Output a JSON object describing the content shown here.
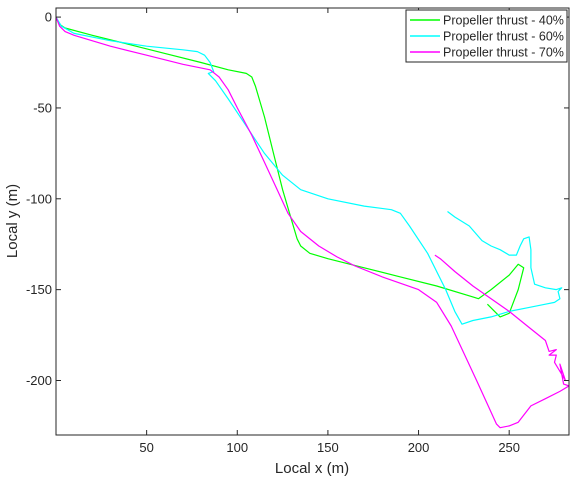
{
  "chart_data": {
    "type": "line",
    "title": "",
    "xlabel": "Local x (m)",
    "ylabel": "Local y (m)",
    "xlim": [
      0,
      283
    ],
    "ylim": [
      -230,
      5
    ],
    "xticks": [
      50,
      100,
      150,
      200,
      250
    ],
    "yticks": [
      0,
      -50,
      -100,
      -150,
      -200
    ],
    "grid": false,
    "legend_position": "top-right",
    "series": [
      {
        "name": "Propeller thrust - 40%",
        "color": "#00ff00",
        "points": [
          [
            0,
            0
          ],
          [
            2,
            -4
          ],
          [
            5,
            -6
          ],
          [
            20,
            -10
          ],
          [
            40,
            -15
          ],
          [
            60,
            -20
          ],
          [
            80,
            -25
          ],
          [
            95,
            -29
          ],
          [
            105,
            -31
          ],
          [
            108,
            -33
          ],
          [
            110,
            -38
          ],
          [
            115,
            -55
          ],
          [
            120,
            -75
          ],
          [
            125,
            -95
          ],
          [
            130,
            -112
          ],
          [
            133,
            -122
          ],
          [
            135,
            -126
          ],
          [
            140,
            -130
          ],
          [
            150,
            -133
          ],
          [
            170,
            -138
          ],
          [
            190,
            -143
          ],
          [
            210,
            -148
          ],
          [
            230,
            -154
          ],
          [
            233,
            -155
          ],
          [
            240,
            -150
          ],
          [
            250,
            -142
          ],
          [
            255,
            -136
          ],
          [
            258,
            -138
          ],
          [
            255,
            -150
          ],
          [
            250,
            -163
          ],
          [
            245,
            -165
          ],
          [
            238,
            -158
          ]
        ]
      },
      {
        "name": "Propeller thrust - 60%",
        "color": "#00ffff",
        "points": [
          [
            0,
            0
          ],
          [
            3,
            -5
          ],
          [
            10,
            -9
          ],
          [
            30,
            -13
          ],
          [
            50,
            -16
          ],
          [
            70,
            -18
          ],
          [
            78,
            -19
          ],
          [
            82,
            -21
          ],
          [
            85,
            -25
          ],
          [
            87,
            -30
          ],
          [
            84,
            -31
          ],
          [
            88,
            -35
          ],
          [
            95,
            -45
          ],
          [
            105,
            -60
          ],
          [
            115,
            -75
          ],
          [
            125,
            -87
          ],
          [
            135,
            -95
          ],
          [
            150,
            -100
          ],
          [
            170,
            -104
          ],
          [
            185,
            -106
          ],
          [
            190,
            -108
          ],
          [
            195,
            -115
          ],
          [
            205,
            -130
          ],
          [
            215,
            -150
          ],
          [
            220,
            -162
          ],
          [
            224,
            -169
          ],
          [
            230,
            -167
          ],
          [
            240,
            -165
          ],
          [
            250,
            -162
          ],
          [
            260,
            -160
          ],
          [
            270,
            -158
          ],
          [
            275,
            -157
          ],
          [
            278,
            -155
          ],
          [
            277,
            -151
          ],
          [
            279,
            -149
          ],
          [
            276,
            -150
          ],
          [
            270,
            -149
          ],
          [
            264,
            -147
          ],
          [
            262,
            -138
          ],
          [
            262,
            -128
          ],
          [
            261,
            -121
          ],
          [
            258,
            -122
          ],
          [
            256,
            -126
          ],
          [
            254,
            -131
          ],
          [
            250,
            -131
          ],
          [
            245,
            -128
          ],
          [
            240,
            -126
          ],
          [
            235,
            -123
          ],
          [
            228,
            -115
          ],
          [
            220,
            -110
          ],
          [
            216,
            -107
          ]
        ]
      },
      {
        "name": "Propeller thrust - 70%",
        "color": "#ff00ff",
        "points": [
          [
            0,
            0
          ],
          [
            2,
            -5
          ],
          [
            5,
            -8
          ],
          [
            10,
            -10
          ],
          [
            30,
            -16
          ],
          [
            50,
            -21
          ],
          [
            70,
            -26
          ],
          [
            85,
            -29
          ],
          [
            90,
            -33
          ],
          [
            95,
            -40
          ],
          [
            100,
            -50
          ],
          [
            108,
            -65
          ],
          [
            115,
            -80
          ],
          [
            122,
            -95
          ],
          [
            128,
            -108
          ],
          [
            135,
            -118
          ],
          [
            145,
            -126
          ],
          [
            155,
            -132
          ],
          [
            165,
            -137
          ],
          [
            180,
            -143
          ],
          [
            200,
            -150
          ],
          [
            210,
            -157
          ],
          [
            218,
            -170
          ],
          [
            225,
            -185
          ],
          [
            232,
            -200
          ],
          [
            238,
            -213
          ],
          [
            243,
            -224
          ],
          [
            245,
            -226
          ],
          [
            250,
            -225
          ],
          [
            255,
            -223
          ],
          [
            262,
            -214
          ],
          [
            270,
            -210
          ],
          [
            278,
            -206
          ],
          [
            283,
            -203
          ],
          [
            280,
            -202
          ],
          [
            278,
            -191
          ],
          [
            281,
            -200
          ],
          [
            275,
            -190
          ],
          [
            276,
            -186
          ],
          [
            272,
            -186
          ],
          [
            276,
            -183
          ],
          [
            272,
            -184
          ],
          [
            270,
            -178
          ],
          [
            260,
            -170
          ],
          [
            250,
            -162
          ],
          [
            240,
            -155
          ],
          [
            230,
            -148
          ],
          [
            220,
            -140
          ],
          [
            212,
            -133
          ],
          [
            209,
            -131
          ]
        ]
      }
    ]
  }
}
